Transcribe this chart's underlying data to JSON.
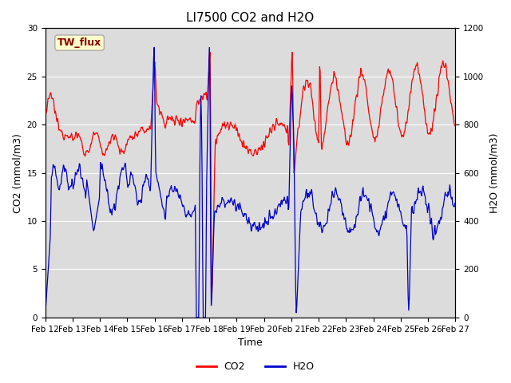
{
  "title": "LI7500 CO2 and H2O",
  "xlabel": "Time",
  "ylabel_left": "CO2 (mmol/m3)",
  "ylabel_right": "H2O (mmol/m3)",
  "ylim_left": [
    0,
    30
  ],
  "ylim_right": [
    0,
    1200
  ],
  "yticks_left": [
    0,
    5,
    10,
    15,
    20,
    25,
    30
  ],
  "yticks_right": [
    0,
    200,
    400,
    600,
    800,
    1000,
    1200
  ],
  "x_labels": [
    "Feb 12",
    "Feb 13",
    "Feb 14",
    "Feb 15",
    "Feb 16",
    "Feb 17",
    "Feb 18",
    "Feb 19",
    "Feb 20",
    "Feb 21",
    "Feb 22",
    "Feb 23",
    "Feb 24",
    "Feb 25",
    "Feb 26",
    "Feb 27"
  ],
  "annotation_text": "TW_flux",
  "annotation_color": "#8B0000",
  "annotation_bg": "#FFFFCC",
  "annotation_edge": "#AAAAAA",
  "bg_color": "#DCDCDC",
  "co2_color": "#FF0000",
  "h2o_color": "#0000CC",
  "legend_labels": [
    "CO2",
    "H2O"
  ],
  "linewidth": 0.9,
  "title_fontsize": 11,
  "axis_fontsize": 9,
  "tick_fontsize": 7.5,
  "legend_fontsize": 9
}
